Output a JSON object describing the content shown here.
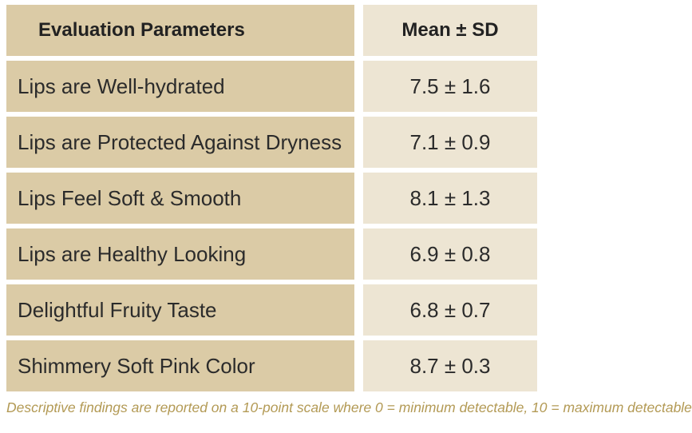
{
  "chart_data": {
    "type": "table",
    "columns": [
      "Evaluation Parameters",
      "Mean ± SD"
    ],
    "rows": [
      {
        "parameter": "Lips are Well-hydrated",
        "value": "7.5 ± 1.6"
      },
      {
        "parameter": "Lips are Protected Against Dryness",
        "value": "7.1 ± 0.9"
      },
      {
        "parameter": "Lips Feel Soft & Smooth",
        "value": "8.1 ± 1.3"
      },
      {
        "parameter": "Lips are Healthy Looking",
        "value": "6.9 ± 0.8"
      },
      {
        "parameter": "Delightful Fruity Taste",
        "value": "6.8 ± 0.7"
      },
      {
        "parameter": "Shimmery Soft Pink Color",
        "value": "8.7 ± 0.3"
      }
    ],
    "footnote": "Descriptive findings are reported on a 10-point scale where 0 = minimum detectable, 10 = maximum detectable"
  },
  "colors": {
    "parameter_cell": "#dbcba6",
    "value_cell": "#ede5d3",
    "footnote_text": "#b39a55"
  }
}
